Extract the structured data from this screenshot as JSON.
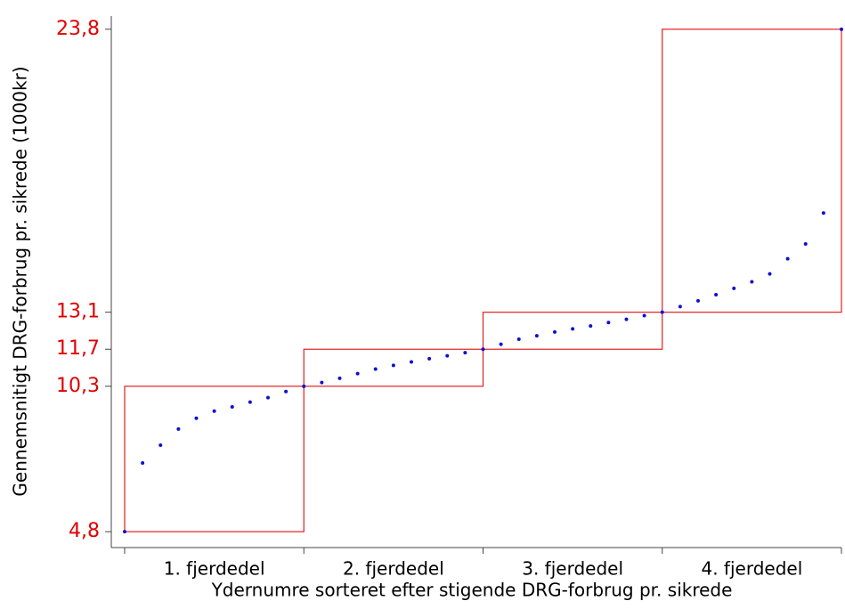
{
  "chart_data": {
    "type": "scatter",
    "y_label": "Gennemsnitigt DRG-forbrug pr. sikrede (1000kr)",
    "x_label": "Ydernumre sorteret efter stigende DRG-forbrug pr. sikrede",
    "categories": [
      "1. fjerdedel",
      "2. fjerdedel",
      "3. fjerdedel",
      "4. fjerdedel"
    ],
    "values": [
      4.8,
      7.4,
      8.07,
      8.68,
      9.09,
      9.36,
      9.52,
      9.7,
      9.87,
      10.1,
      10.3,
      10.44,
      10.6,
      10.78,
      10.95,
      11.09,
      11.22,
      11.34,
      11.45,
      11.57,
      11.7,
      11.89,
      12.08,
      12.21,
      12.35,
      12.47,
      12.58,
      12.71,
      12.83,
      12.97,
      13.1,
      13.31,
      13.53,
      13.76,
      14.0,
      14.25,
      14.55,
      15.12,
      15.68,
      16.85,
      23.8
    ],
    "color": "#1010d0",
    "box_color": "#e02020",
    "tick_label_color": "#e00000",
    "ylim": [
      4.2,
      24.3
    ],
    "yticks": [
      {
        "value": 4.8,
        "label": "4,8"
      },
      {
        "value": 10.3,
        "label": "10,3"
      },
      {
        "value": 11.7,
        "label": "11,7"
      },
      {
        "value": 13.1,
        "label": "13,1"
      },
      {
        "value": 23.8,
        "label": "23,8"
      }
    ],
    "grid": false
  }
}
